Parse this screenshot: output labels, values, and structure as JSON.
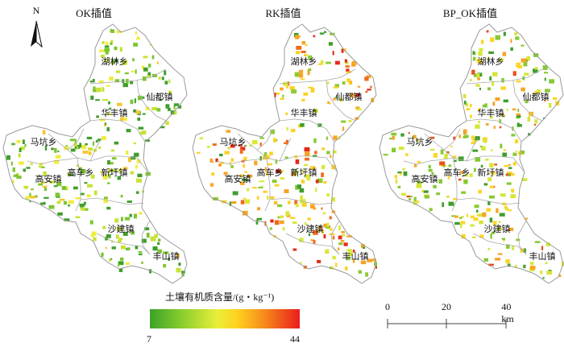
{
  "north_arrow": {
    "label": "N"
  },
  "panels": [
    {
      "title": "OK插值",
      "scheme": "ok"
    },
    {
      "title": "RK插值",
      "scheme": "rk"
    },
    {
      "title": "BP_OK插值",
      "scheme": "bp"
    }
  ],
  "towns": [
    "湖林乡",
    "仙都镇",
    "华丰镇",
    "马坑乡",
    "高安镇",
    "高车乡",
    "新圩镇",
    "沙建镇",
    "丰山镇"
  ],
  "legend": {
    "title": "土壤有机质含量/(g・kg⁻¹)",
    "min": "7",
    "max": "44",
    "colors": [
      "#3aa32a",
      "#8ccf2d",
      "#e8ef3a",
      "#ffd21f",
      "#f7911a",
      "#ea1d1d"
    ]
  },
  "scale_bar": {
    "labels": [
      "0",
      "20",
      "40 km"
    ]
  }
}
